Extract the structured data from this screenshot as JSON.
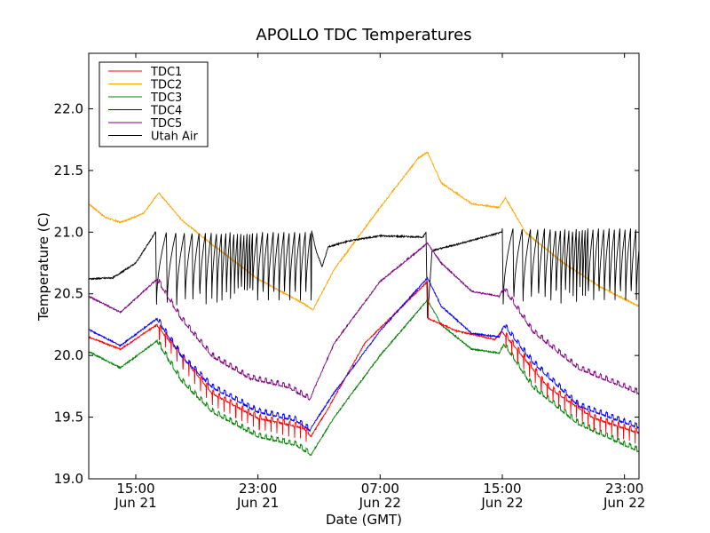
{
  "chart_data": {
    "type": "line",
    "title": "APOLLO TDC Temperatures",
    "xlabel": "Date (GMT)",
    "ylabel": "Temperature (C)",
    "x_units": "hours since Jun 21 00:00 GMT",
    "xlim": [
      11.92,
      47.95
    ],
    "ylim": [
      19.0,
      22.45
    ],
    "grid": false,
    "legend_position": "top-left",
    "x_ticks": [
      {
        "value": 15,
        "label_time": "15:00",
        "label_date": "Jun 21"
      },
      {
        "value": 23,
        "label_time": "23:00",
        "label_date": "Jun 21"
      },
      {
        "value": 31,
        "label_time": "07:00",
        "label_date": "Jun 22"
      },
      {
        "value": 39,
        "label_time": "15:00",
        "label_date": "Jun 22"
      },
      {
        "value": 47,
        "label_time": "23:00",
        "label_date": "Jun 22"
      }
    ],
    "y_ticks": [
      {
        "value": 19.0,
        "label": "19.0"
      },
      {
        "value": 19.5,
        "label": "19.5"
      },
      {
        "value": 20.0,
        "label": "20.0"
      },
      {
        "value": 20.5,
        "label": "20.5"
      },
      {
        "value": 21.0,
        "label": "21.0"
      },
      {
        "value": 21.5,
        "label": "21.5"
      },
      {
        "value": 22.0,
        "label": "22.0"
      }
    ],
    "series": [
      {
        "name": "TDC1",
        "color": "#ff0000",
        "points": [
          [
            11.92,
            20.15
          ],
          [
            14.0,
            20.05
          ],
          [
            16.4,
            20.25
          ],
          [
            20.0,
            19.7
          ],
          [
            23.0,
            19.5
          ],
          [
            26.0,
            19.42
          ],
          [
            26.5,
            19.35
          ],
          [
            27.5,
            19.55
          ],
          [
            30.0,
            20.1
          ],
          [
            34.1,
            20.6
          ],
          [
            34.15,
            20.3
          ],
          [
            36.0,
            20.2
          ],
          [
            38.5,
            20.13
          ],
          [
            39.0,
            20.2
          ],
          [
            42.0,
            19.75
          ],
          [
            45.0,
            19.5
          ],
          [
            47.95,
            19.38
          ]
        ],
        "spikes": [
          {
            "from": 16.4,
            "to": 26.5,
            "depth": 0.12
          },
          {
            "from": 39.0,
            "to": 47.95,
            "depth": 0.12
          }
        ]
      },
      {
        "name": "TDC2",
        "color": "#ffa500",
        "points": [
          [
            11.92,
            21.23
          ],
          [
            13.0,
            21.12
          ],
          [
            14.0,
            21.08
          ],
          [
            15.5,
            21.15
          ],
          [
            16.5,
            21.32
          ],
          [
            18.0,
            21.1
          ],
          [
            20.0,
            20.9
          ],
          [
            23.0,
            20.62
          ],
          [
            26.0,
            20.42
          ],
          [
            26.6,
            20.37
          ],
          [
            28.0,
            20.7
          ],
          [
            31.0,
            21.2
          ],
          [
            33.5,
            21.6
          ],
          [
            34.1,
            21.65
          ],
          [
            35.0,
            21.4
          ],
          [
            37.0,
            21.23
          ],
          [
            38.8,
            21.2
          ],
          [
            39.2,
            21.28
          ],
          [
            40.5,
            21.0
          ],
          [
            43.0,
            20.75
          ],
          [
            45.5,
            20.55
          ],
          [
            47.95,
            20.4
          ]
        ],
        "spikes": []
      },
      {
        "name": "TDC3",
        "color": "#008000",
        "points": [
          [
            11.92,
            20.03
          ],
          [
            14.0,
            19.9
          ],
          [
            16.4,
            20.12
          ],
          [
            18.0,
            19.8
          ],
          [
            20.0,
            19.55
          ],
          [
            23.0,
            19.35
          ],
          [
            25.5,
            19.28
          ],
          [
            26.5,
            19.2
          ],
          [
            28.0,
            19.5
          ],
          [
            31.0,
            20.0
          ],
          [
            34.1,
            20.45
          ],
          [
            35.0,
            20.25
          ],
          [
            37.0,
            20.05
          ],
          [
            38.8,
            20.02
          ],
          [
            39.1,
            20.1
          ],
          [
            41.0,
            19.75
          ],
          [
            44.0,
            19.45
          ],
          [
            47.95,
            19.23
          ]
        ],
        "spikes": []
      },
      {
        "name": "TDC4",
        "color": "#0000ff",
        "points": [
          [
            11.92,
            20.21
          ],
          [
            14.0,
            20.08
          ],
          [
            16.4,
            20.3
          ],
          [
            18.0,
            20.0
          ],
          [
            20.0,
            19.75
          ],
          [
            23.0,
            19.55
          ],
          [
            25.5,
            19.48
          ],
          [
            26.4,
            19.4
          ],
          [
            28.0,
            19.7
          ],
          [
            31.0,
            20.2
          ],
          [
            34.1,
            20.63
          ],
          [
            35.0,
            20.4
          ],
          [
            37.0,
            20.18
          ],
          [
            38.8,
            20.15
          ],
          [
            39.1,
            20.25
          ],
          [
            41.0,
            19.95
          ],
          [
            44.0,
            19.6
          ],
          [
            47.95,
            19.42
          ]
        ],
        "spikes": []
      },
      {
        "name": "TDC5",
        "color": "#800080",
        "points": [
          [
            11.92,
            20.48
          ],
          [
            14.0,
            20.35
          ],
          [
            16.4,
            20.62
          ],
          [
            18.0,
            20.3
          ],
          [
            20.0,
            20.0
          ],
          [
            22.5,
            19.82
          ],
          [
            25.0,
            19.75
          ],
          [
            26.4,
            19.65
          ],
          [
            28.0,
            20.1
          ],
          [
            31.0,
            20.6
          ],
          [
            34.1,
            20.91
          ],
          [
            35.0,
            20.75
          ],
          [
            37.0,
            20.52
          ],
          [
            38.8,
            20.48
          ],
          [
            39.1,
            20.55
          ],
          [
            41.0,
            20.2
          ],
          [
            44.0,
            19.9
          ],
          [
            47.95,
            19.7
          ]
        ],
        "spikes": []
      },
      {
        "name": "Utah Air",
        "color": "#000000",
        "points": [
          [
            11.92,
            20.62
          ],
          [
            13.5,
            20.63
          ],
          [
            15.0,
            20.75
          ],
          [
            16.3,
            21.0
          ],
          [
            26.5,
            21.02
          ],
          [
            26.8,
            20.85
          ],
          [
            27.2,
            20.72
          ],
          [
            27.6,
            20.88
          ],
          [
            29.0,
            20.93
          ],
          [
            31.0,
            20.97
          ],
          [
            33.8,
            20.96
          ],
          [
            34.0,
            21.0
          ],
          [
            34.1,
            20.3
          ],
          [
            34.4,
            20.85
          ],
          [
            36.0,
            20.9
          ],
          [
            39.0,
            21.0
          ],
          [
            47.95,
            21.02
          ]
        ],
        "sawtooth": [
          {
            "from": 16.3,
            "to": 26.5,
            "low": 20.4,
            "high": 21.0
          },
          {
            "from": 39.0,
            "to": 47.95,
            "low": 20.4,
            "high": 21.03
          }
        ]
      }
    ]
  }
}
